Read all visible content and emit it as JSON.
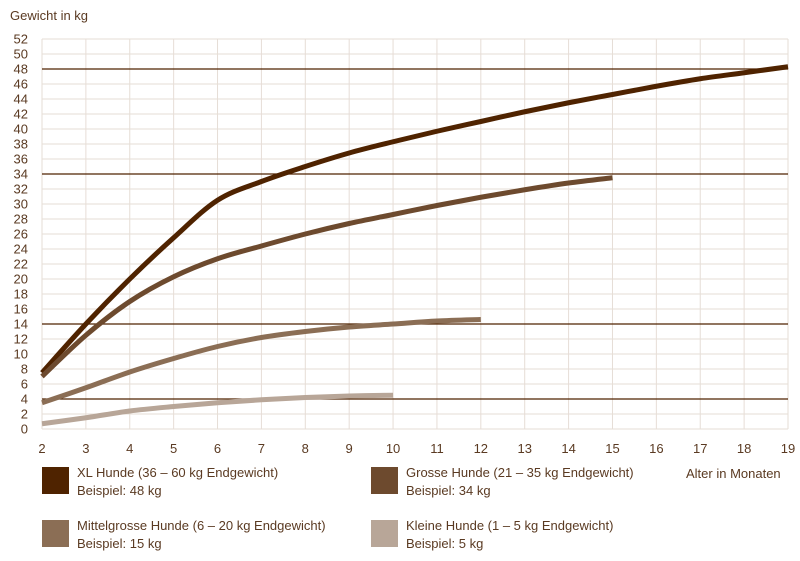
{
  "chart_data": {
    "type": "line",
    "ylabel": "Gewicht in kg",
    "xlabel": "Alter in Monaten",
    "xlim": [
      2,
      19
    ],
    "ylim": [
      0,
      52
    ],
    "x_ticks": [
      2,
      3,
      4,
      5,
      6,
      7,
      8,
      9,
      10,
      11,
      12,
      13,
      14,
      15,
      16,
      17,
      18,
      19
    ],
    "y_ticks": [
      0,
      2,
      4,
      6,
      8,
      10,
      12,
      14,
      16,
      18,
      20,
      22,
      24,
      26,
      28,
      30,
      32,
      34,
      36,
      38,
      40,
      42,
      44,
      46,
      48,
      50,
      52
    ],
    "grid": true,
    "reference_lines": [
      48,
      34,
      14,
      4
    ],
    "reference_color": "#4f2300",
    "series": [
      {
        "name": "XL Hunde (36 – 60 kg Endgewicht)",
        "example": "Beispiel: 48 kg",
        "color": "#4f2300",
        "x": [
          2,
          3,
          4,
          5,
          6,
          7,
          8,
          9,
          10,
          11,
          12,
          13,
          14,
          15,
          16,
          17,
          18,
          19
        ],
        "y": [
          7.5,
          14,
          20,
          25.5,
          30.5,
          33,
          35,
          36.8,
          38.3,
          39.7,
          41,
          42.3,
          43.5,
          44.6,
          45.7,
          46.7,
          47.5,
          48.3
        ]
      },
      {
        "name": "Grosse Hunde (21 – 35 kg Endgewicht)",
        "example": "Beispiel: 34 kg",
        "color": "#6d4a2e",
        "x": [
          2,
          3,
          4,
          5,
          6,
          7,
          8,
          9,
          10,
          11,
          12,
          13,
          14,
          15
        ],
        "y": [
          7,
          12.5,
          17,
          20.3,
          22.7,
          24.4,
          26,
          27.4,
          28.6,
          29.8,
          30.9,
          31.9,
          32.8,
          33.5
        ]
      },
      {
        "name": "Mittelgrosse Hunde (6 – 20 kg Endgewicht)",
        "example": "Beispiel: 15 kg",
        "color": "#8b6e55",
        "x": [
          2,
          3,
          4,
          5,
          6,
          7,
          8,
          9,
          10,
          11,
          12
        ],
        "y": [
          3.5,
          5.5,
          7.6,
          9.4,
          11,
          12.2,
          13,
          13.6,
          14,
          14.4,
          14.6
        ]
      },
      {
        "name": "Kleine Hunde (1 – 5 kg Endgewicht)",
        "example": "Beispiel: 5 kg",
        "color": "#b8a698",
        "x": [
          2,
          3,
          4,
          5,
          6,
          7,
          8,
          9,
          10
        ],
        "y": [
          0.7,
          1.5,
          2.4,
          3.0,
          3.5,
          3.9,
          4.2,
          4.4,
          4.5
        ]
      }
    ],
    "legend": "bottom"
  }
}
